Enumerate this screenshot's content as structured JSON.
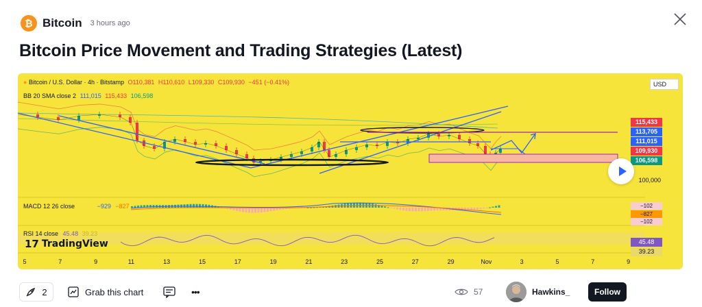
{
  "header": {
    "coin_icon": "bitcoin-icon",
    "coin_glyph": "₿",
    "symbol": "Bitcoin",
    "time_ago": "3 hours ago"
  },
  "title": "Bitcoin Price Movement and Trading Strategies (Latest)",
  "chart": {
    "legend_main": {
      "name": "Bitcoin / U.S. Dollar · 4h · Bitstamp",
      "o": "O110,381",
      "h": "H110,610",
      "l": "L109,330",
      "c": "C109,930",
      "chg": "−451 (−0.41%)"
    },
    "legend_bb": {
      "name": "BB 20 SMA close 2",
      "v1": "111,015",
      "v2": "115,433",
      "v3": "106,598"
    },
    "macd_label": "MACD 12 26 close",
    "macd_v1": "−929",
    "macd_v2": "−827",
    "rsi_label": "RSI 14 close",
    "rsi_val": "45.48",
    "rsi_val2": "39.23",
    "logo_text": "TradingView",
    "currency": "USD",
    "price_tags": [
      {
        "value": "115,433",
        "color": "#f23645"
      },
      {
        "value": "113,705",
        "color": "#2962ff"
      },
      {
        "value": "111,015",
        "color": "#2962ff"
      },
      {
        "value": "109,930",
        "color": "#f23645"
      },
      {
        "value": "106,598",
        "color": "#089981"
      }
    ],
    "axis_price": "100,000",
    "macd_tags": [
      "−102",
      "−827",
      "−102"
    ],
    "rsi_tags": [
      "45.48",
      "39.23"
    ],
    "x_ticks": [
      "5",
      "7",
      "9",
      "11",
      "13",
      "15",
      "17",
      "19",
      "21",
      "23",
      "25",
      "27",
      "29",
      "Nov",
      "3",
      "5",
      "7",
      "9"
    ],
    "play_icon": "play-icon"
  },
  "footer": {
    "boost_icon": "rocket-icon",
    "boost_count": "2",
    "grab_icon": "chart-snapshot-icon",
    "grab_label": "Grab this chart",
    "comment_icon": "comment-icon",
    "more_label": "•••",
    "views_icon": "eye-icon",
    "views_count": "57",
    "author_name": "Hawkins_",
    "follow_label": "Follow"
  },
  "colors": {
    "chart_bg": "#f6e43a",
    "bitcoin": "#f7931a",
    "up": "#089981",
    "down": "#f23645",
    "accent": "#2962ff"
  }
}
